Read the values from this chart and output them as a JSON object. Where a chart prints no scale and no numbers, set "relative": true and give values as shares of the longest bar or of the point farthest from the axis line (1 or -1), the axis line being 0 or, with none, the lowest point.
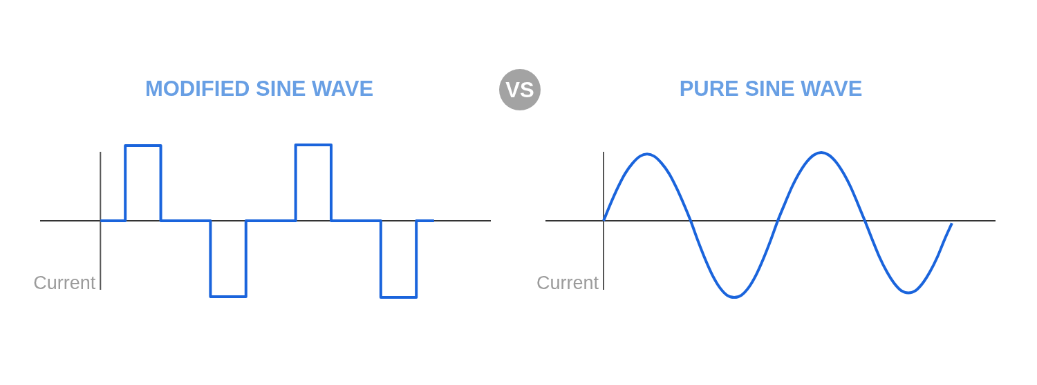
{
  "chart_data": [
    {
      "type": "step",
      "title": "MODIFIED SINE WAVE",
      "ylabel": "Current",
      "relative": true,
      "categories": [
        null,
        null,
        null,
        null,
        null,
        null,
        null,
        null,
        null,
        null,
        null,
        null,
        null,
        null,
        null,
        null,
        null,
        null,
        null,
        null,
        null,
        null,
        null,
        null,
        null,
        null,
        null,
        null,
        null,
        null,
        null,
        null,
        null,
        null,
        null,
        null,
        null,
        null,
        null,
        null,
        null,
        null,
        null,
        null,
        null,
        null,
        null,
        null,
        null,
        null,
        null,
        null,
        null,
        null,
        null,
        null,
        null,
        null,
        null,
        null,
        null,
        null,
        null,
        null,
        null,
        null,
        null,
        null,
        null,
        null,
        null,
        null,
        null,
        null,
        null,
        null,
        null,
        null,
        null,
        null,
        null,
        null,
        null,
        null,
        null,
        null,
        null,
        null,
        null,
        null,
        null,
        null,
        null,
        null,
        null,
        null,
        null,
        null,
        null,
        null,
        null,
        null,
        null,
        null,
        null,
        null,
        null,
        null,
        null,
        null,
        null,
        null,
        null,
        null,
        null,
        null,
        null,
        null,
        null,
        null,
        null,
        null,
        null,
        null,
        null,
        null,
        null,
        null
      ],
      "series": [
        {
          "color": "#1a64dc",
          "values": [
            null,
            null,
            null,
            null,
            null,
            null,
            null,
            null,
            null,
            null,
            null,
            null,
            null,
            null,
            null,
            null,
            null,
            0,
            0,
            0,
            0,
            0,
            0,
            0,
            0.98,
            0.98,
            0.98,
            0.98,
            0.98,
            0.98,
            0.98,
            0.98,
            0.98,
            0.98,
            0,
            0,
            0,
            0,
            0,
            0,
            0,
            0,
            0,
            0,
            0,
            0,
            0,
            0,
            -0.99,
            -0.99,
            -0.99,
            -0.99,
            -0.99,
            -0.99,
            -0.99,
            -0.99,
            -0.99,
            -0.99,
            0,
            0,
            0,
            0,
            0,
            0,
            0,
            0,
            0,
            0,
            0,
            0,
            0,
            0,
            0.99,
            0.99,
            0.99,
            0.99,
            0.99,
            0.99,
            0.99,
            0.99,
            0.99,
            0.99,
            0,
            0,
            0,
            0,
            0,
            0,
            0,
            0,
            0,
            0,
            0,
            0,
            0,
            0,
            -1,
            -1,
            -1,
            -1,
            -1,
            -1,
            -1,
            -1,
            -1,
            -1,
            0,
            0,
            0,
            0,
            0,
            0,
            null,
            null,
            null,
            null,
            null,
            null,
            null,
            null,
            null,
            null,
            null,
            null,
            null,
            null,
            null,
            null
          ]
        }
      ]
    },
    {
      "type": "other",
      "annotations": [
        "VS"
      ]
    },
    {
      "type": "line",
      "title": "PURE SINE WAVE",
      "ylabel": "Current",
      "relative": true,
      "categories": [
        null,
        null,
        null,
        null,
        null,
        null,
        null,
        null,
        null,
        null,
        null,
        null,
        null,
        null,
        null,
        null,
        null,
        null,
        null,
        null,
        null,
        null,
        null,
        null,
        null,
        null,
        null,
        null,
        null,
        null,
        null,
        null,
        null,
        null,
        null,
        null,
        null,
        null,
        null,
        null,
        null,
        null,
        null,
        null,
        null,
        null,
        null,
        null,
        null,
        null,
        null,
        null,
        null,
        null,
        null,
        null,
        null,
        null,
        null,
        null,
        null,
        null,
        null
      ],
      "series": [
        {
          "color": "#1a64dc",
          "values": [
            null,
            null,
            null,
            null,
            null,
            null,
            null,
            null,
            0,
            0.23,
            0.44,
            0.62,
            0.75,
            0.84,
            0.87,
            0.84,
            0.75,
            0.62,
            0.44,
            0.23,
            0,
            -0.26,
            -0.5,
            -0.71,
            -0.87,
            -0.97,
            -1,
            -0.97,
            -0.87,
            -0.71,
            -0.5,
            -0.26,
            0,
            0.23,
            0.45,
            0.63,
            0.77,
            0.86,
            0.89,
            0.86,
            0.77,
            0.63,
            0.45,
            0.23,
            0,
            -0.24,
            -0.47,
            -0.66,
            -0.81,
            -0.91,
            -0.94,
            -0.91,
            -0.81,
            -0.66,
            -0.47,
            -0.24,
            -0.03,
            null,
            null,
            null,
            null,
            null,
            null
          ]
        }
      ]
    }
  ]
}
